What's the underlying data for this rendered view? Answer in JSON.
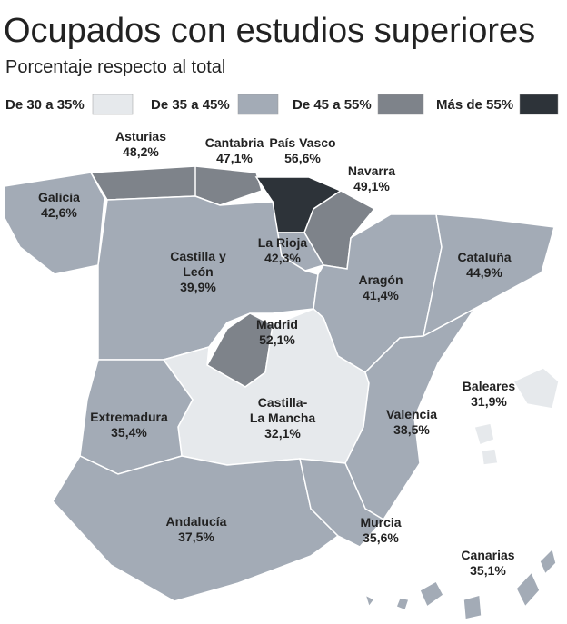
{
  "header": {
    "title": "Ocupados con estudios superiores",
    "subtitle": "Porcentaje respecto al total"
  },
  "legend": [
    {
      "label": "De 30 a 35%",
      "min": 30,
      "max": 35,
      "color": "#e6e9ec"
    },
    {
      "label": "De 35 a 45%",
      "min": 35,
      "max": 45,
      "color": "#a3abb6"
    },
    {
      "label": "De 45 a 55%",
      "min": 45,
      "max": 55,
      "color": "#7e838a"
    },
    {
      "label": "Más de 55%",
      "min": 55,
      "max": 100,
      "color": "#2d3339"
    }
  ],
  "regions": [
    {
      "name": [
        "Galicia"
      ],
      "value": 42.6,
      "value_label": "42,6%"
    },
    {
      "name": [
        "Asturias"
      ],
      "value": 48.2,
      "value_label": "48,2%"
    },
    {
      "name": [
        "Cantabria"
      ],
      "value": 47.1,
      "value_label": "47,1%"
    },
    {
      "name": [
        "País Vasco"
      ],
      "value": 56.6,
      "value_label": "56,6%"
    },
    {
      "name": [
        "Navarra"
      ],
      "value": 49.1,
      "value_label": "49,1%"
    },
    {
      "name": [
        "La Rioja"
      ],
      "value": 42.3,
      "value_label": "42,3%"
    },
    {
      "name": [
        "Castilla y",
        "León"
      ],
      "value": 39.9,
      "value_label": "39,9%"
    },
    {
      "name": [
        "Aragón"
      ],
      "value": 41.4,
      "value_label": "41,4%"
    },
    {
      "name": [
        "Cataluña"
      ],
      "value": 44.9,
      "value_label": "44,9%"
    },
    {
      "name": [
        "Madrid"
      ],
      "value": 52.1,
      "value_label": "52,1%"
    },
    {
      "name": [
        "Castilla-",
        "La Mancha"
      ],
      "value": 32.1,
      "value_label": "32,1%"
    },
    {
      "name": [
        "Extremadura"
      ],
      "value": 35.4,
      "value_label": "35,4%"
    },
    {
      "name": [
        "Valencia"
      ],
      "value": 38.5,
      "value_label": "38,5%"
    },
    {
      "name": [
        "Baleares"
      ],
      "value": 31.9,
      "value_label": "31,9%"
    },
    {
      "name": [
        "Andalucía"
      ],
      "value": 37.5,
      "value_label": "37,5%"
    },
    {
      "name": [
        "Murcia"
      ],
      "value": 35.6,
      "value_label": "35,6%"
    },
    {
      "name": [
        "Canarias"
      ],
      "value": 35.1,
      "value_label": "35,1%"
    }
  ]
}
